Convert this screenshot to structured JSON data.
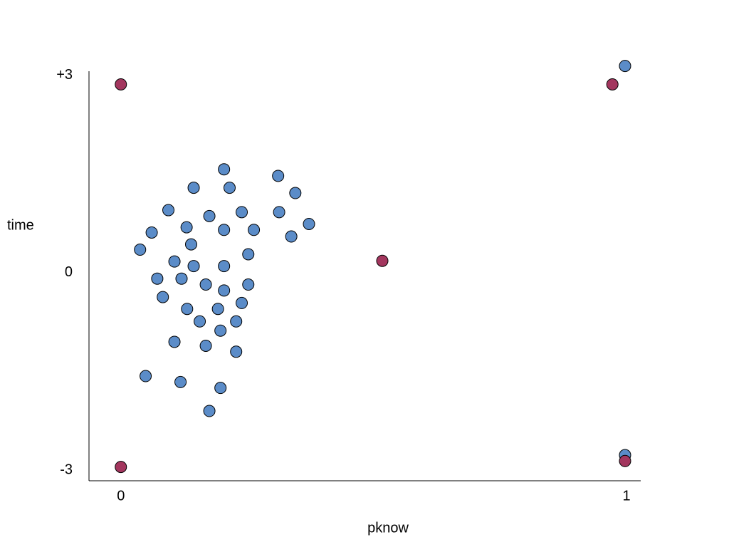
{
  "chart_data": {
    "type": "scatter",
    "x_label": "pknow",
    "y_label": "time",
    "xlim": [
      -0.063,
      1.028
    ],
    "ylim": [
      -3.16,
      3.06
    ],
    "xticks": [
      0,
      1
    ],
    "yticks": [
      {
        "value": 3,
        "label": "+3"
      },
      0,
      -3
    ],
    "grid": false,
    "series": [
      {
        "color": "#5b8cc8",
        "x": [
          0.997,
          0.204,
          0.311,
          0.144,
          0.215,
          0.345,
          0.094,
          0.175,
          0.239,
          0.313,
          0.061,
          0.13,
          0.204,
          0.263,
          0.372,
          0.337,
          0.038,
          0.139,
          0.252,
          0.106,
          0.144,
          0.204,
          0.072,
          0.12,
          0.168,
          0.204,
          0.252,
          0.083,
          0.239,
          0.131,
          0.192,
          0.156,
          0.228,
          0.197,
          0.106,
          0.168,
          0.228,
          0.049,
          0.118,
          0.197,
          0.175,
          0.997
        ],
        "values": [
          3.14,
          1.57,
          1.47,
          1.29,
          1.29,
          1.21,
          0.95,
          0.86,
          0.92,
          0.92,
          0.61,
          0.69,
          0.65,
          0.65,
          0.74,
          0.55,
          0.35,
          0.43,
          0.28,
          0.17,
          0.1,
          0.1,
          -0.09,
          -0.09,
          -0.18,
          -0.27,
          -0.18,
          -0.37,
          -0.46,
          -0.55,
          -0.55,
          -0.74,
          -0.74,
          -0.88,
          -1.05,
          -1.11,
          -1.2,
          -1.57,
          -1.66,
          -1.75,
          -2.1,
          -2.77
        ]
      },
      {
        "color": "#a3365e",
        "x": [
          0,
          0.972,
          0.517,
          0,
          0.997
        ],
        "values": [
          2.86,
          2.86,
          0.18,
          -2.95,
          -2.86
        ]
      }
    ]
  }
}
